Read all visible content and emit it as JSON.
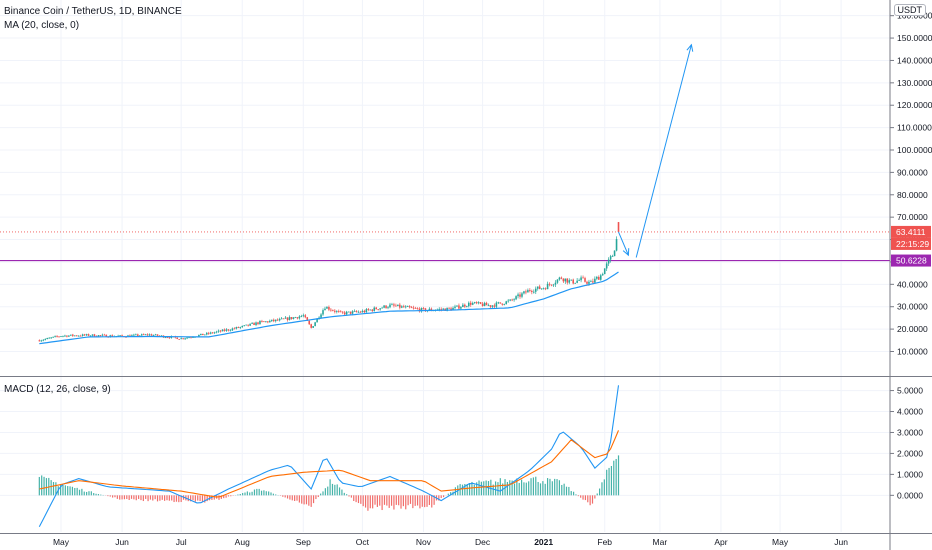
{
  "header": {
    "symbol": "Binance Coin / TetherUS, 1D, BINANCE",
    "ma_label": "MA (20, close, 0)",
    "currency": "USDT"
  },
  "macd_panel": {
    "label": "MACD (12, 26, close, 9)"
  },
  "price_tags": {
    "last": "63.4111",
    "countdown": "22:15:29",
    "level": "50.6228"
  },
  "colors": {
    "up": "#26a69a",
    "down": "#ef5350",
    "ma": "#2196f3",
    "signal": "#ff6d00",
    "level_line": "#9c27b0",
    "last_price": "#ef5350",
    "arrow": "#2196f3"
  },
  "chart_data": [
    {
      "type": "candlestick",
      "title": "Binance Coin / TetherUS, 1D, BINANCE",
      "x_ticks": [
        "May",
        "Jun",
        "Jul",
        "Aug",
        "Sep",
        "Oct",
        "Nov",
        "Dec",
        "2021",
        "Feb",
        "Mar",
        "Apr",
        "May",
        "Jun"
      ],
      "y_ticks": [
        "10.0000",
        "20.0000",
        "30.0000",
        "40.0000",
        "50.0000",
        "60.0000",
        "70.0000",
        "80.0000",
        "90.0000",
        "100.0000",
        "110.0000",
        "120.0000",
        "130.0000",
        "140.0000",
        "150.0000",
        "160.0000"
      ],
      "ylim": [
        -0.5,
        167
      ],
      "close_series": [
        [
          "2020-04-20",
          15.0
        ],
        [
          "2020-05-01",
          17.0
        ],
        [
          "2020-05-15",
          17.3
        ],
        [
          "2020-06-01",
          16.8
        ],
        [
          "2020-06-15",
          17.5
        ],
        [
          "2020-07-01",
          15.8
        ],
        [
          "2020-07-15",
          18.0
        ],
        [
          "2020-08-01",
          21.0
        ],
        [
          "2020-08-10",
          23.0
        ],
        [
          "2020-08-20",
          24.0
        ],
        [
          "2020-09-01",
          26.0
        ],
        [
          "2020-09-05",
          20.5
        ],
        [
          "2020-09-12",
          30.0
        ],
        [
          "2020-09-20",
          27.0
        ],
        [
          "2020-10-01",
          27.8
        ],
        [
          "2020-10-15",
          30.5
        ],
        [
          "2020-11-01",
          28.5
        ],
        [
          "2020-11-15",
          29.0
        ],
        [
          "2020-11-25",
          31.5
        ],
        [
          "2020-12-05",
          30.5
        ],
        [
          "2020-12-15",
          32.5
        ],
        [
          "2020-12-25",
          37.5
        ],
        [
          "2021-01-01",
          38.5
        ],
        [
          "2021-01-10",
          43.0
        ],
        [
          "2021-01-15",
          41.0
        ],
        [
          "2021-01-20",
          42.0
        ],
        [
          "2021-01-25",
          40.5
        ],
        [
          "2021-01-30",
          44.0
        ],
        [
          "2021-02-05",
          53.0
        ],
        [
          "2021-02-08",
          63.41
        ]
      ],
      "ma_20": [
        [
          "2020-04-20",
          13.5
        ],
        [
          "2020-05-15",
          16.5
        ],
        [
          "2020-06-15",
          16.7
        ],
        [
          "2020-07-15",
          16.5
        ],
        [
          "2020-08-15",
          21.5
        ],
        [
          "2020-09-15",
          25.5
        ],
        [
          "2020-10-15",
          28.0
        ],
        [
          "2020-11-15",
          28.5
        ],
        [
          "2020-12-15",
          29.5
        ],
        [
          "2021-01-01",
          33.5
        ],
        [
          "2021-01-15",
          38.0
        ],
        [
          "2021-02-01",
          41.5
        ],
        [
          "2021-02-08",
          45.5
        ]
      ],
      "last_price": 63.4111,
      "level_line": 50.6228,
      "projection": [
        [
          "2021-02-08",
          63.4
        ],
        [
          "2021-02-13",
          53.0
        ],
        [
          "2021-02-17",
          52.0
        ],
        [
          "2021-03-17",
          147.0
        ]
      ]
    },
    {
      "type": "line",
      "title": "MACD (12, 26, close, 9)",
      "y_ticks": [
        "0.0000",
        "1.0000",
        "2.0000",
        "3.0000",
        "4.0000",
        "5.0000"
      ],
      "ylim": [
        -1.75,
        5.6
      ],
      "series": [
        {
          "key": "macd",
          "values": [
            [
              "2020-04-20",
              -1.5
            ],
            [
              "2020-05-01",
              0.5
            ],
            [
              "2020-05-10",
              0.8
            ],
            [
              "2020-05-25",
              0.4
            ],
            [
              "2020-06-10",
              0.3
            ],
            [
              "2020-06-25",
              0.2
            ],
            [
              "2020-07-10",
              -0.4
            ],
            [
              "2020-07-25",
              0.3
            ],
            [
              "2020-08-15",
              1.2
            ],
            [
              "2020-08-25",
              1.45
            ],
            [
              "2020-09-05",
              0.3
            ],
            [
              "2020-09-12",
              1.9
            ],
            [
              "2020-09-20",
              0.6
            ],
            [
              "2020-09-30",
              0.4
            ],
            [
              "2020-10-15",
              0.9
            ],
            [
              "2020-11-01",
              0.2
            ],
            [
              "2020-11-10",
              -0.25
            ],
            [
              "2020-11-25",
              0.6
            ],
            [
              "2020-12-10",
              0.2
            ],
            [
              "2020-12-25",
              1.2
            ],
            [
              "2021-01-05",
              2.2
            ],
            [
              "2021-01-10",
              3.1
            ],
            [
              "2021-01-20",
              2.3
            ],
            [
              "2021-01-27",
              1.3
            ],
            [
              "2021-02-03",
              1.9
            ],
            [
              "2021-02-08",
              5.25
            ]
          ]
        },
        {
          "key": "signal",
          "values": [
            [
              "2020-04-20",
              0.3
            ],
            [
              "2020-05-10",
              0.7
            ],
            [
              "2020-06-01",
              0.45
            ],
            [
              "2020-07-01",
              0.2
            ],
            [
              "2020-07-20",
              -0.1
            ],
            [
              "2020-08-15",
              0.9
            ],
            [
              "2020-09-01",
              1.1
            ],
            [
              "2020-09-20",
              1.2
            ],
            [
              "2020-10-05",
              0.7
            ],
            [
              "2020-11-01",
              0.7
            ],
            [
              "2020-11-10",
              0.2
            ],
            [
              "2020-11-25",
              0.35
            ],
            [
              "2020-12-15",
              0.5
            ],
            [
              "2021-01-05",
              1.6
            ],
            [
              "2021-01-15",
              2.65
            ],
            [
              "2021-01-27",
              1.8
            ],
            [
              "2021-02-03",
              2.0
            ],
            [
              "2021-02-08",
              3.1
            ]
          ]
        },
        {
          "key": "histogram",
          "values": [
            [
              "2020-04-20",
              0.8
            ],
            [
              "2020-05-10",
              0.3
            ],
            [
              "2020-06-01",
              -0.2
            ],
            [
              "2020-07-15",
              -0.3
            ],
            [
              "2020-08-10",
              0.3
            ],
            [
              "2020-09-05",
              -0.5
            ],
            [
              "2020-09-15",
              0.7
            ],
            [
              "2020-10-01",
              -0.6
            ],
            [
              "2020-11-05",
              -0.5
            ],
            [
              "2020-11-20",
              0.5
            ],
            [
              "2020-12-25",
              0.8
            ],
            [
              "2021-01-10",
              0.6
            ],
            [
              "2021-01-25",
              -0.5
            ],
            [
              "2021-02-08",
              2.1
            ]
          ]
        }
      ]
    }
  ]
}
